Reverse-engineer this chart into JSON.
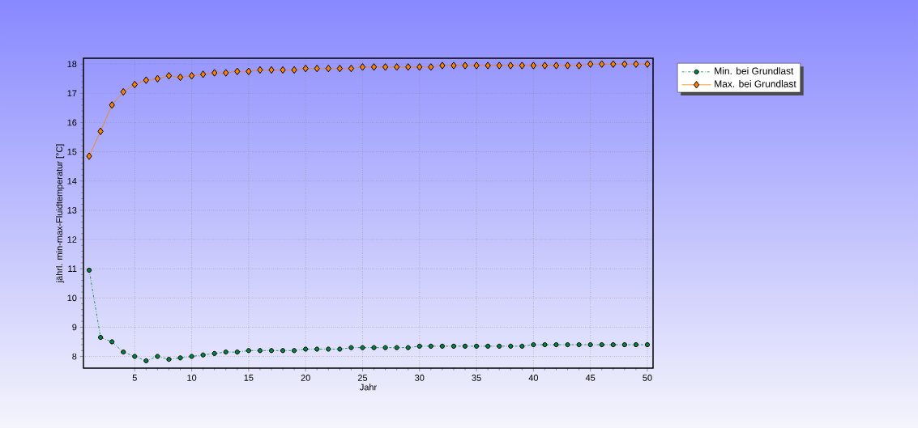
{
  "chart_data": {
    "type": "line",
    "xlabel": "Jahr",
    "ylabel": "jährl. min-max-Fluidtemperatur [°C]",
    "x": [
      1,
      2,
      3,
      4,
      5,
      6,
      7,
      8,
      9,
      10,
      11,
      12,
      13,
      14,
      15,
      16,
      17,
      18,
      19,
      20,
      21,
      22,
      23,
      24,
      25,
      26,
      27,
      28,
      29,
      30,
      31,
      32,
      33,
      34,
      35,
      36,
      37,
      38,
      39,
      40,
      41,
      42,
      43,
      44,
      45,
      46,
      47,
      48,
      49,
      50
    ],
    "series": [
      {
        "name": "Min. bei Grundlast",
        "color": "#008040",
        "marker": "circle",
        "line_style": "dashdotted",
        "values": [
          10.95,
          8.65,
          8.5,
          8.15,
          8.0,
          7.85,
          8.0,
          7.9,
          7.95,
          8.0,
          8.05,
          8.1,
          8.15,
          8.15,
          8.2,
          8.2,
          8.2,
          8.2,
          8.2,
          8.25,
          8.25,
          8.25,
          8.25,
          8.3,
          8.3,
          8.3,
          8.3,
          8.3,
          8.3,
          8.35,
          8.35,
          8.35,
          8.35,
          8.35,
          8.35,
          8.35,
          8.35,
          8.35,
          8.35,
          8.4,
          8.4,
          8.4,
          8.4,
          8.4,
          8.4,
          8.4,
          8.4,
          8.4,
          8.4,
          8.4
        ]
      },
      {
        "name": "Max. bei Grundlast",
        "color": "#ff8000",
        "marker": "diamond",
        "line_style": "solid",
        "values": [
          14.85,
          15.7,
          16.6,
          17.05,
          17.3,
          17.45,
          17.5,
          17.6,
          17.55,
          17.6,
          17.65,
          17.7,
          17.7,
          17.75,
          17.75,
          17.8,
          17.8,
          17.8,
          17.8,
          17.85,
          17.85,
          17.85,
          17.85,
          17.85,
          17.9,
          17.9,
          17.9,
          17.9,
          17.9,
          17.9,
          17.9,
          17.95,
          17.95,
          17.95,
          17.95,
          17.95,
          17.95,
          17.95,
          17.95,
          17.95,
          17.95,
          17.95,
          17.95,
          17.95,
          18.0,
          18.0,
          18.0,
          18.0,
          18.0,
          18.0
        ]
      }
    ],
    "xlim": [
      0.5,
      50.5
    ],
    "ylim": [
      7.6,
      18.2
    ],
    "xticks": [
      5,
      10,
      15,
      20,
      25,
      30,
      35,
      40,
      45,
      50
    ],
    "yticks": [
      8,
      9,
      10,
      11,
      12,
      13,
      14,
      15,
      16,
      17,
      18
    ],
    "grid": true,
    "legend": "top right"
  }
}
